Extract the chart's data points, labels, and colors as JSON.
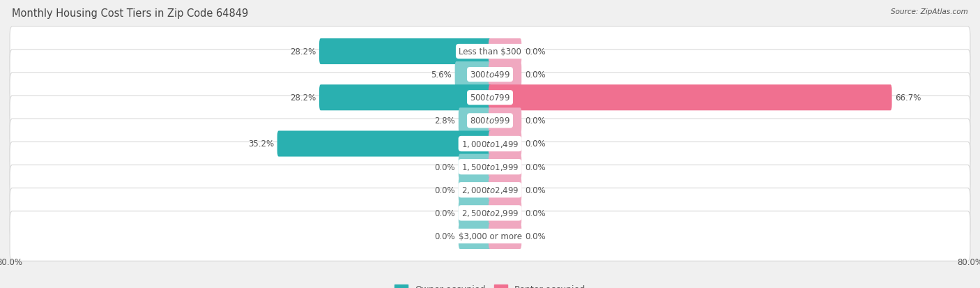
{
  "title": "Monthly Housing Cost Tiers in Zip Code 64849",
  "source": "Source: ZipAtlas.com",
  "categories": [
    "Less than $300",
    "$300 to $499",
    "$500 to $799",
    "$800 to $999",
    "$1,000 to $1,499",
    "$1,500 to $1,999",
    "$2,000 to $2,499",
    "$2,500 to $2,999",
    "$3,000 or more"
  ],
  "owner_values": [
    28.2,
    5.6,
    28.2,
    2.8,
    35.2,
    0.0,
    0.0,
    0.0,
    0.0
  ],
  "renter_values": [
    0.0,
    0.0,
    66.7,
    0.0,
    0.0,
    0.0,
    0.0,
    0.0,
    0.0
  ],
  "owner_color_dark": "#2ab0b0",
  "owner_color_light": "#7ecece",
  "renter_color_dark": "#f07090",
  "renter_color_light": "#f0a8c0",
  "stub_size": 5.0,
  "axis_limit": 80.0,
  "background_color": "#f0f0f0",
  "row_bg_color": "#ffffff",
  "row_border_color": "#d8d8d8",
  "bar_height": 0.62,
  "label_fontsize": 8.5,
  "title_fontsize": 10.5,
  "legend_fontsize": 9,
  "axis_label_fontsize": 8.5,
  "text_color": "#555555",
  "title_color": "#444444"
}
